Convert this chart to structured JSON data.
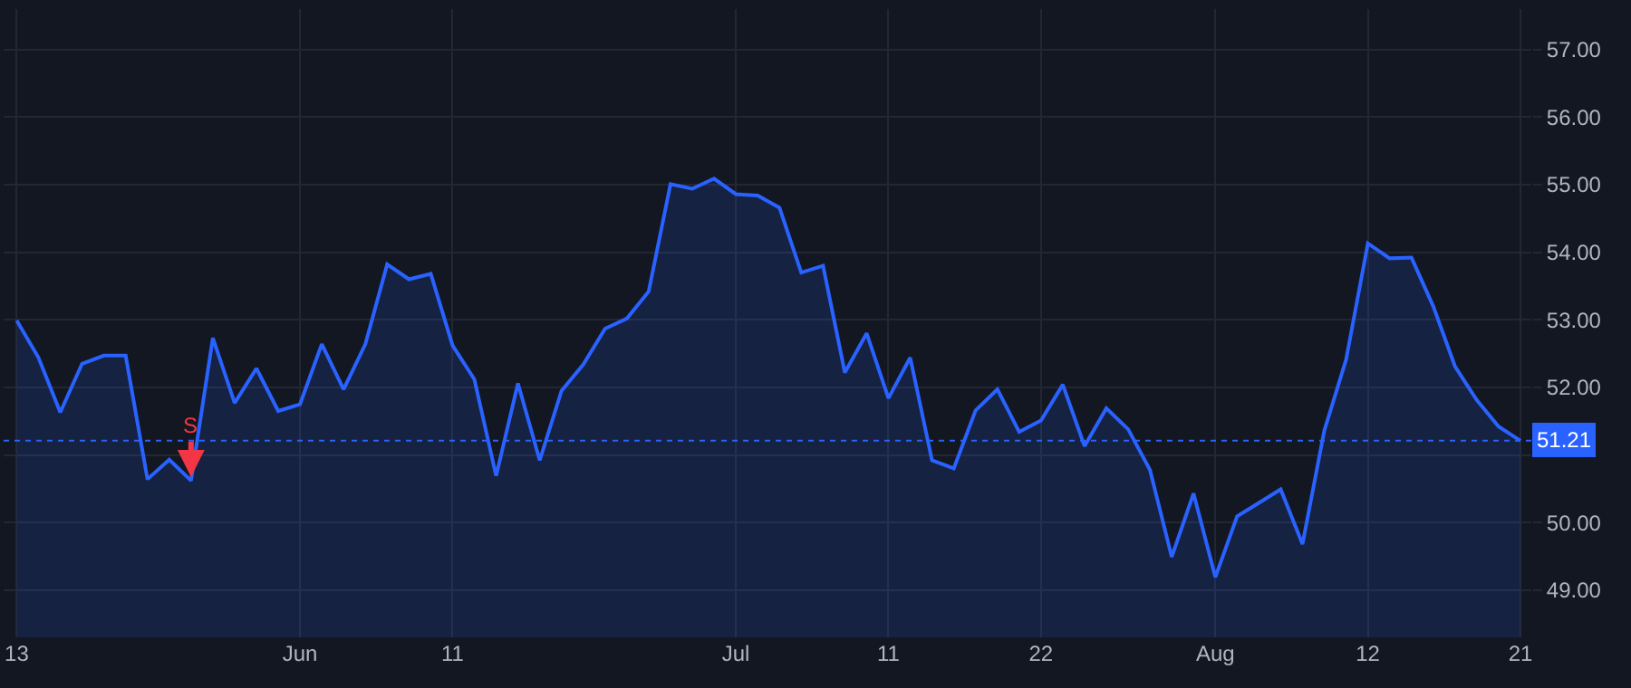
{
  "chart_data": {
    "type": "area",
    "categories": [
      "13",
      null,
      null,
      null,
      null,
      null,
      null,
      null,
      null,
      null,
      null,
      null,
      null,
      "Jun",
      null,
      null,
      null,
      null,
      null,
      null,
      "11",
      null,
      null,
      null,
      null,
      null,
      null,
      null,
      null,
      null,
      null,
      null,
      null,
      "Jul",
      null,
      null,
      null,
      null,
      null,
      null,
      "11",
      null,
      null,
      null,
      null,
      null,
      null,
      "22",
      null,
      null,
      null,
      null,
      null,
      null,
      null,
      "Aug",
      null,
      null,
      null,
      null,
      null,
      null,
      "12",
      null,
      null,
      null,
      null,
      null,
      null,
      "21"
    ],
    "series": [
      {
        "color": "#2962ff",
        "values": [
          52.99,
          52.44,
          51.63,
          52.35,
          52.47,
          52.47,
          50.64,
          50.93,
          50.62,
          52.73,
          51.77,
          52.28,
          51.65,
          51.75,
          52.64,
          51.97,
          52.64,
          53.82,
          53.6,
          53.68,
          52.62,
          52.12,
          50.69,
          52.06,
          50.92,
          51.95,
          52.34,
          52.87,
          53.02,
          53.42,
          55.01,
          54.94,
          55.09,
          54.86,
          54.84,
          54.66,
          53.7,
          53.8,
          52.22,
          52.8,
          51.84,
          52.44,
          50.92,
          50.8,
          51.66,
          51.97,
          51.34,
          51.51,
          52.04,
          51.13,
          51.69,
          51.38,
          50.78,
          49.49,
          50.43,
          49.19,
          50.09,
          50.29,
          50.49,
          49.68,
          51.36,
          52.41,
          54.13,
          53.91,
          53.92,
          53.2,
          52.31,
          51.81,
          51.42,
          51.21
        ]
      }
    ],
    "ylim": [
      48.3,
      57.6
    ],
    "yticks": [
      {
        "value": 49,
        "label": "49.00"
      },
      {
        "value": 50,
        "label": "50.00"
      },
      {
        "value": 51,
        "label": null
      },
      {
        "value": 52,
        "label": "52.00"
      },
      {
        "value": 53,
        "label": "53.00"
      },
      {
        "value": 54,
        "label": "54.00"
      },
      {
        "value": 55,
        "label": "55.00"
      },
      {
        "value": 56,
        "label": "56.00"
      },
      {
        "value": 57,
        "label": "57.00"
      }
    ],
    "ref_lines": [
      {
        "axis": "y",
        "value": 51.21,
        "label": "51.21",
        "color": "#2962ff",
        "line_style": "dotted"
      }
    ],
    "annotations": [
      {
        "text": "S",
        "y": 50.62
      }
    ],
    "grid": true,
    "marker": "none",
    "line_style": "solid"
  }
}
